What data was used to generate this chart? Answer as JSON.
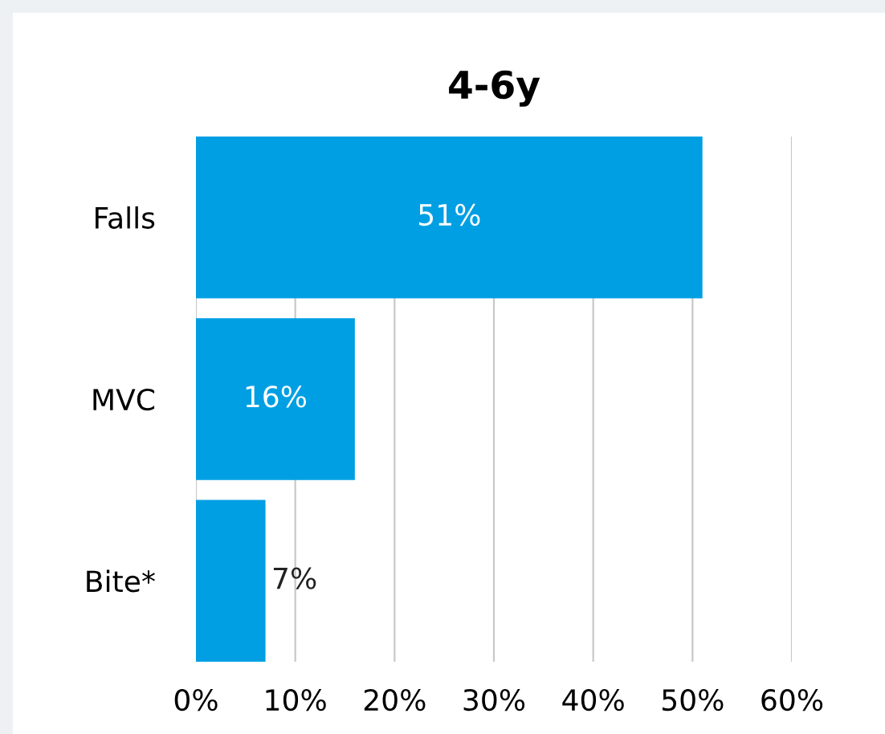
{
  "chart_data": {
    "type": "bar",
    "orientation": "horizontal",
    "title": "4-6y",
    "categories": [
      "Falls",
      "MVC",
      "Bite*"
    ],
    "values": [
      51,
      16,
      7
    ],
    "value_labels": [
      "51%",
      "16%",
      "7%"
    ],
    "color": "#009fe3",
    "xlim": [
      0,
      60
    ],
    "xticks": [
      {
        "value": 0,
        "label": "0%"
      },
      {
        "value": 10,
        "label": "10%"
      },
      {
        "value": 20,
        "label": "20%"
      },
      {
        "value": 30,
        "label": "30%"
      },
      {
        "value": 40,
        "label": "40%"
      },
      {
        "value": 50,
        "label": "50%"
      },
      {
        "value": 60,
        "label": "60%"
      }
    ],
    "grid": "x",
    "legend": false
  }
}
